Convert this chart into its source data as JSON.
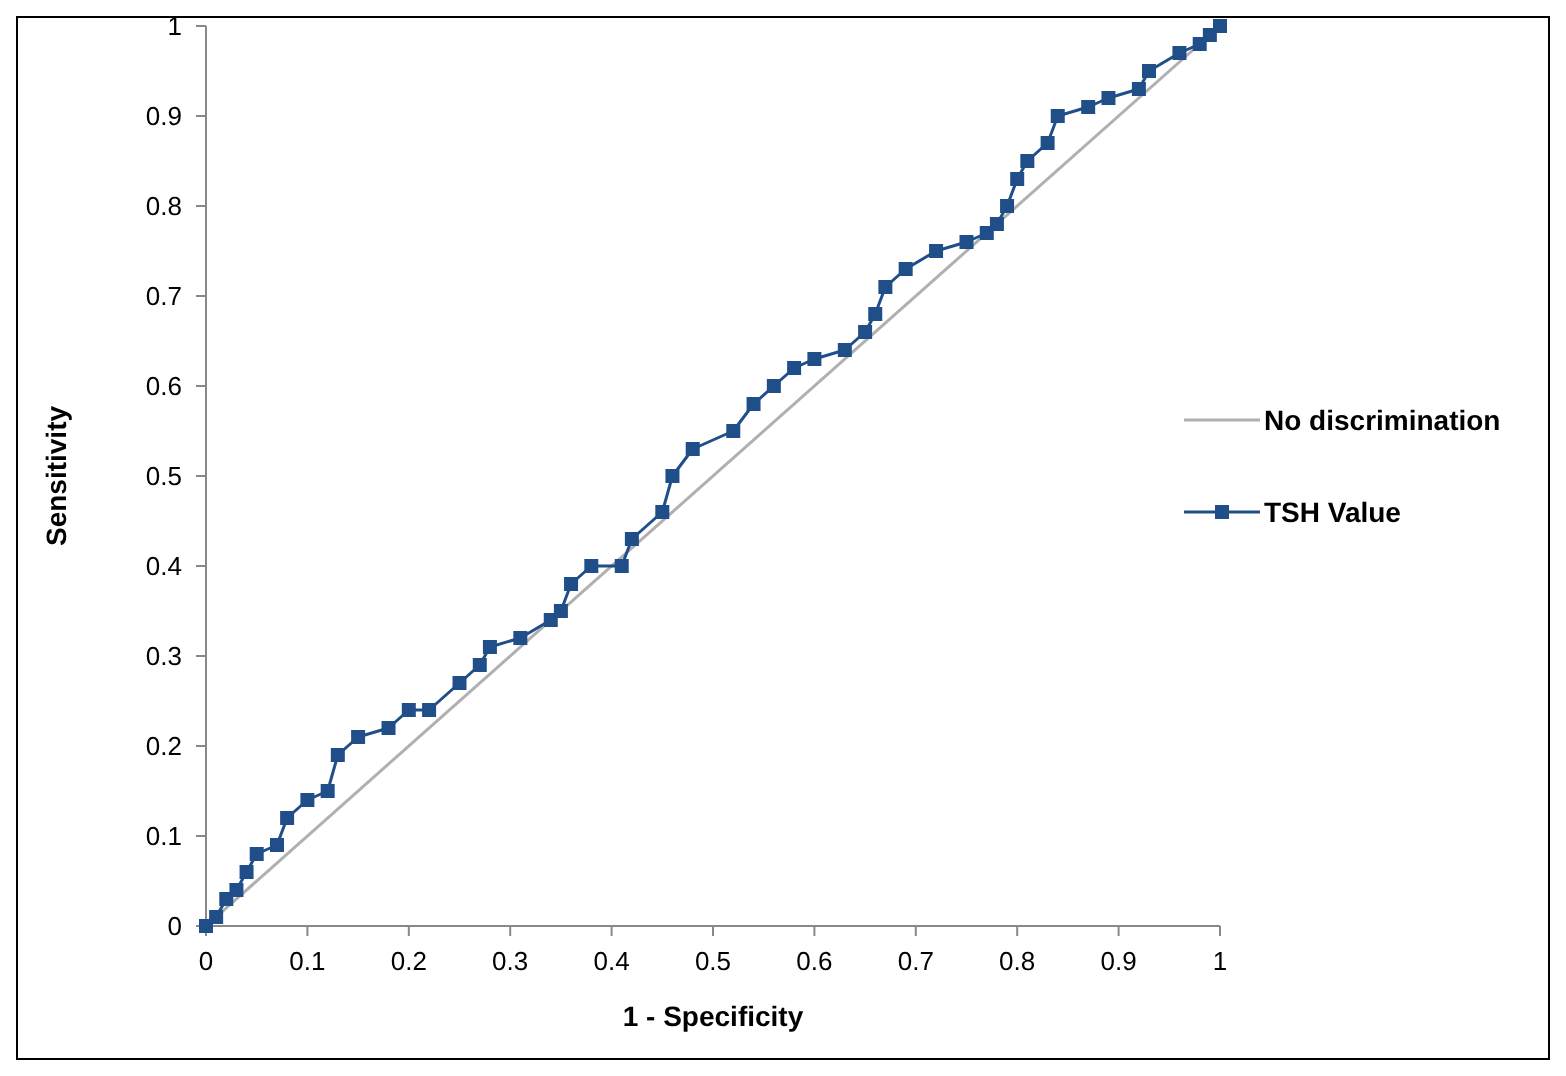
{
  "chart_data": {
    "type": "line",
    "xlabel": "1 - Specificity",
    "ylabel": "Sensitivity",
    "xlim": [
      0,
      1
    ],
    "ylim": [
      0,
      1
    ],
    "xticks": [
      0,
      0.1,
      0.2,
      0.3,
      0.4,
      0.5,
      0.6,
      0.7,
      0.8,
      0.9,
      1
    ],
    "yticks": [
      0,
      0.1,
      0.2,
      0.3,
      0.4,
      0.5,
      0.6,
      0.7,
      0.8,
      0.9,
      1
    ],
    "grid": false,
    "legend": "right",
    "series": [
      {
        "name": "No discrimination",
        "color": "#b0b0b0",
        "marker": "none",
        "x": [
          0,
          1
        ],
        "values": [
          0,
          1
        ]
      },
      {
        "name": "TSH Value",
        "color": "#1f4e89",
        "marker": "square",
        "x": [
          0,
          0.01,
          0.02,
          0.03,
          0.04,
          0.05,
          0.07,
          0.08,
          0.1,
          0.12,
          0.13,
          0.15,
          0.18,
          0.2,
          0.22,
          0.25,
          0.27,
          0.28,
          0.31,
          0.34,
          0.35,
          0.36,
          0.38,
          0.41,
          0.42,
          0.45,
          0.46,
          0.48,
          0.52,
          0.54,
          0.56,
          0.58,
          0.6,
          0.63,
          0.65,
          0.66,
          0.67,
          0.69,
          0.72,
          0.75,
          0.77,
          0.78,
          0.79,
          0.8,
          0.81,
          0.83,
          0.84,
          0.87,
          0.89,
          0.92,
          0.93,
          0.96,
          0.98,
          0.99,
          1
        ],
        "values": [
          0,
          0.01,
          0.03,
          0.04,
          0.06,
          0.08,
          0.09,
          0.12,
          0.14,
          0.15,
          0.19,
          0.21,
          0.22,
          0.24,
          0.24,
          0.27,
          0.29,
          0.31,
          0.32,
          0.34,
          0.35,
          0.38,
          0.4,
          0.4,
          0.43,
          0.46,
          0.5,
          0.53,
          0.55,
          0.58,
          0.6,
          0.62,
          0.63,
          0.64,
          0.66,
          0.68,
          0.71,
          0.73,
          0.75,
          0.76,
          0.77,
          0.78,
          0.8,
          0.83,
          0.85,
          0.87,
          0.9,
          0.91,
          0.92,
          0.93,
          0.95,
          0.97,
          0.98,
          0.99,
          1
        ]
      }
    ]
  }
}
